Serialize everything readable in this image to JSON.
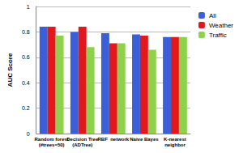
{
  "chart_data": {
    "type": "bar",
    "y_label": "AUC Score",
    "categories": [
      "Random forest\n(#trees=50)",
      "Decision Tree\n(ADTree)",
      "RBF  network",
      "Naive Bayes",
      "K-nearest\nneighbor"
    ],
    "series": [
      {
        "name": "All",
        "color": "#3a5fd9",
        "values": [
          0.84,
          0.8,
          0.79,
          0.78,
          0.76
        ]
      },
      {
        "name": "Weather",
        "color": "#e3181c",
        "values": [
          0.84,
          0.84,
          0.71,
          0.77,
          0.76
        ]
      },
      {
        "name": "Traffic",
        "color": "#8ed14a",
        "values": [
          0.77,
          0.68,
          0.71,
          0.66,
          0.76
        ]
      }
    ],
    "ylim": [
      0,
      1
    ],
    "yticks": [
      0,
      0.2,
      0.4,
      0.6,
      0.8,
      1
    ],
    "grid": true,
    "legend": "top-right"
  }
}
